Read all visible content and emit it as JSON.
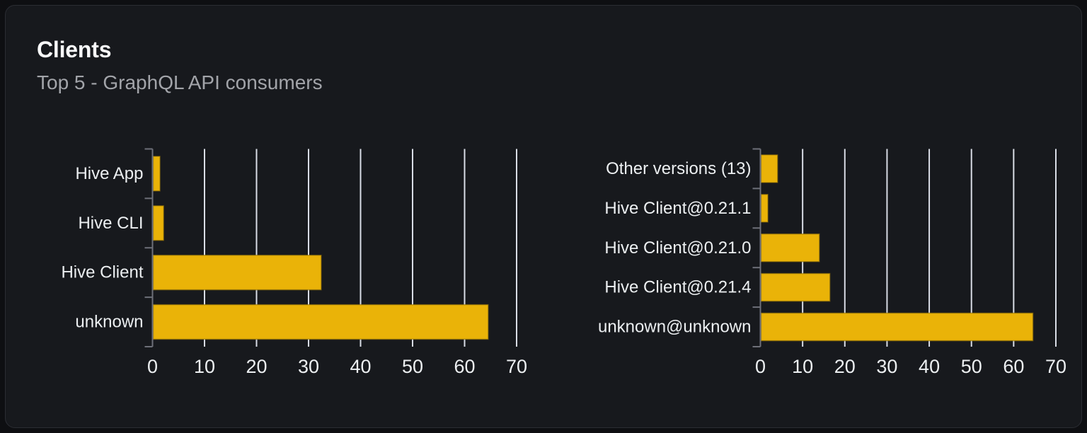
{
  "card": {
    "title": "Clients",
    "subtitle": "Top 5 - GraphQL API consumers"
  },
  "colors": {
    "page_bg": "#0e0f12",
    "card_bg": "#17191d",
    "card_border": "#2b2d33",
    "bar": "#eab308",
    "bar_border": "#8c6d07",
    "gridline": "#d9dde6",
    "axis": "#6e7079",
    "label_text": "#eceff1",
    "title_text": "#f8f9fa",
    "subtitle_text": "#a2a4a9"
  },
  "chart_data": [
    {
      "type": "bar",
      "orientation": "horizontal",
      "name": "clients-by-name",
      "categories": [
        "Hive App",
        "Hive CLI",
        "Hive Client",
        "unknown"
      ],
      "values": [
        1.3,
        2.0,
        32.3,
        64.4
      ],
      "xlim": [
        0,
        70
      ],
      "xticks": [
        0,
        10,
        20,
        30,
        40,
        50,
        60,
        70
      ],
      "xtick_labels": [
        "0",
        "10",
        "20",
        "30",
        "40",
        "50",
        "60",
        "70"
      ],
      "grid": true,
      "legend": "none",
      "xlabel": "",
      "ylabel": ""
    },
    {
      "type": "bar",
      "orientation": "horizontal",
      "name": "clients-by-version",
      "categories": [
        "Other versions (13)",
        "Hive Client@0.21.1",
        "Hive Client@0.21.0",
        "Hive Client@0.21.4",
        "unknown@unknown"
      ],
      "values": [
        3.9,
        1.6,
        13.8,
        16.3,
        64.4
      ],
      "xlim": [
        0,
        70
      ],
      "xticks": [
        0,
        10,
        20,
        30,
        40,
        50,
        60,
        70
      ],
      "xtick_labels": [
        "0",
        "10",
        "20",
        "30",
        "40",
        "50",
        "60",
        "70"
      ],
      "grid": true,
      "legend": "none",
      "xlabel": "",
      "ylabel": ""
    }
  ]
}
